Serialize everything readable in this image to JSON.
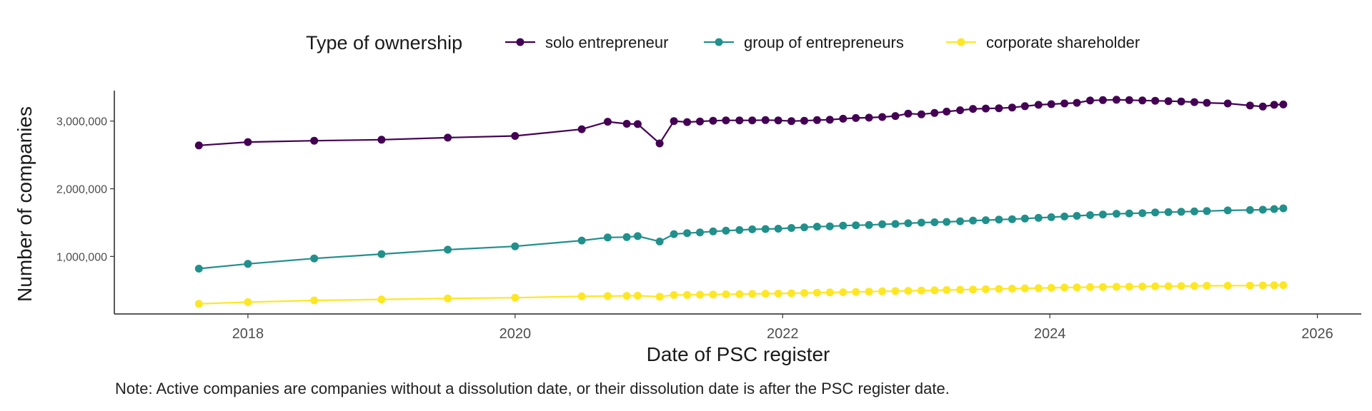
{
  "chart_data": {
    "type": "line",
    "xlabel": "Date of PSC register",
    "ylabel": "Number of companies",
    "legend_title": "Type of ownership",
    "legend_position": "top",
    "grid": false,
    "xlim": [
      "2017-01-01",
      "2026-05-01"
    ],
    "ylim": [
      150000,
      3450000
    ],
    "x_ticks": [
      {
        "date": "2018-01-01",
        "label": "2018"
      },
      {
        "date": "2020-01-01",
        "label": "2020"
      },
      {
        "date": "2022-01-01",
        "label": "2022"
      },
      {
        "date": "2024-01-01",
        "label": "2024"
      },
      {
        "date": "2026-01-01",
        "label": "2026"
      }
    ],
    "y_ticks": [
      {
        "value": 1000000,
        "label": "1,000,000"
      },
      {
        "value": 2000000,
        "label": "2,000,000"
      },
      {
        "value": 3000000,
        "label": "3,000,000"
      }
    ],
    "x": [
      "2017-08-20",
      "2018-01-01",
      "2018-07-01",
      "2019-01-01",
      "2019-07-01",
      "2020-01-01",
      "2020-07-01",
      "2020-09-10",
      "2020-11-01",
      "2020-12-01",
      "2021-01-30",
      "2021-03-10",
      "2021-04-15",
      "2021-05-20",
      "2021-06-25",
      "2021-07-30",
      "2021-09-05",
      "2021-10-10",
      "2021-11-15",
      "2021-12-20",
      "2022-01-25",
      "2022-03-01",
      "2022-04-05",
      "2022-05-10",
      "2022-06-15",
      "2022-07-20",
      "2022-08-25",
      "2022-09-30",
      "2022-11-05",
      "2022-12-10",
      "2023-01-15",
      "2023-02-20",
      "2023-03-25",
      "2023-05-01",
      "2023-06-05",
      "2023-07-10",
      "2023-08-15",
      "2023-09-20",
      "2023-10-25",
      "2023-12-01",
      "2024-01-05",
      "2024-02-10",
      "2024-03-15",
      "2024-04-20",
      "2024-05-25",
      "2024-07-01",
      "2024-08-05",
      "2024-09-10",
      "2024-10-15",
      "2024-11-20",
      "2024-12-25",
      "2025-01-30",
      "2025-03-05",
      "2025-05-01",
      "2025-07-01",
      "2025-08-05",
      "2025-09-05",
      "2025-09-30"
    ],
    "series": [
      {
        "name": "solo entrepreneur",
        "color": "#440154",
        "values": [
          2640000,
          2690000,
          2710000,
          2725000,
          2755000,
          2780000,
          2880000,
          2990000,
          2960000,
          2955000,
          2670000,
          3000000,
          2985000,
          2995000,
          3005000,
          3010000,
          3010000,
          3010000,
          3015000,
          3010000,
          3000000,
          3005000,
          3015000,
          3020000,
          3035000,
          3045000,
          3050000,
          3060000,
          3075000,
          3110000,
          3100000,
          3120000,
          3140000,
          3160000,
          3180000,
          3185000,
          3190000,
          3200000,
          3220000,
          3240000,
          3250000,
          3260000,
          3270000,
          3305000,
          3310000,
          3315000,
          3310000,
          3305000,
          3300000,
          3295000,
          3290000,
          3280000,
          3270000,
          3260000,
          3230000,
          3215000,
          3240000,
          3245000
        ]
      },
      {
        "name": "group of entrepreneurs",
        "color": "#21908C",
        "values": [
          820000,
          890000,
          970000,
          1035000,
          1100000,
          1150000,
          1235000,
          1280000,
          1285000,
          1300000,
          1220000,
          1330000,
          1345000,
          1355000,
          1370000,
          1380000,
          1390000,
          1400000,
          1405000,
          1410000,
          1420000,
          1430000,
          1440000,
          1445000,
          1455000,
          1460000,
          1465000,
          1475000,
          1480000,
          1490000,
          1500000,
          1505000,
          1510000,
          1520000,
          1530000,
          1535000,
          1545000,
          1550000,
          1560000,
          1570000,
          1580000,
          1590000,
          1600000,
          1610000,
          1620000,
          1630000,
          1635000,
          1640000,
          1650000,
          1655000,
          1660000,
          1665000,
          1670000,
          1680000,
          1685000,
          1690000,
          1700000,
          1710000
        ]
      },
      {
        "name": "corporate shareholder",
        "color": "#FDE725",
        "values": [
          300000,
          325000,
          350000,
          365000,
          380000,
          390000,
          410000,
          415000,
          418000,
          420000,
          405000,
          430000,
          432000,
          435000,
          438000,
          440000,
          443000,
          446000,
          449000,
          452000,
          456000,
          460000,
          464000,
          468000,
          472000,
          476000,
          480000,
          484000,
          488000,
          492000,
          496000,
          500000,
          504000,
          508000,
          512000,
          516000,
          520000,
          524000,
          528000,
          532000,
          536000,
          540000,
          543000,
          546000,
          549000,
          552000,
          554000,
          556000,
          558000,
          560000,
          562000,
          564000,
          566000,
          568000,
          570000,
          572000,
          574000,
          576000
        ]
      }
    ]
  },
  "note": "Note: Active companies are companies without a dissolution date, or their dissolution date is after the PSC register date."
}
